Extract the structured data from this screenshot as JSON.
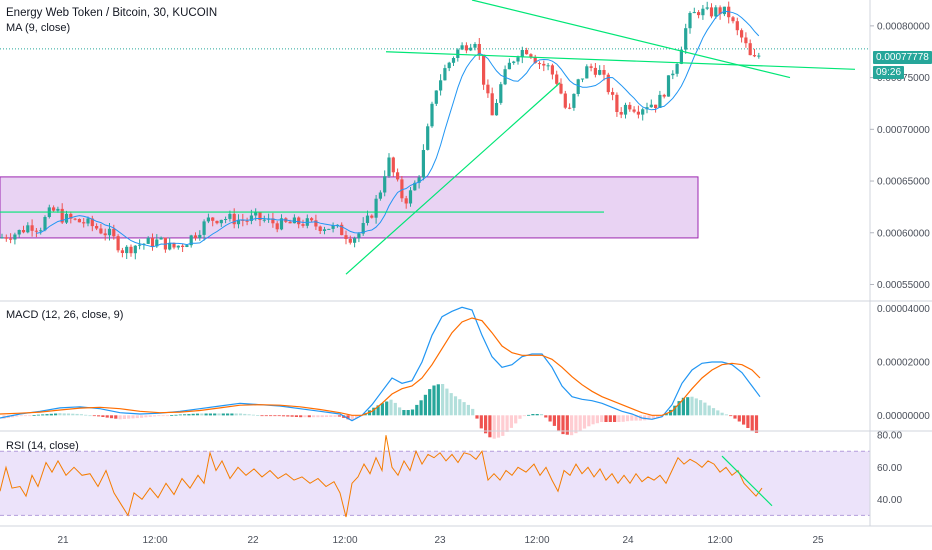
{
  "header": {
    "symbol_title": "Energy Web Token / Bitcoin, 30, KUCOIN",
    "ma_label": "MA (9, close)",
    "macd_label": "MACD (12, 26, close, 9)",
    "rsi_label": "RSI (14, close)"
  },
  "price_tags": {
    "last_price": "0.00077778",
    "countdown": "09:26"
  },
  "colors": {
    "up": "#26a69a",
    "down": "#ef5350",
    "ma": "#2196f3",
    "macd_line": "#2196f3",
    "signal_line": "#ff6d00",
    "trendline": "#00e676",
    "zone_fill": "#e1c4ef",
    "zone_border": "#9c27b0",
    "rsi_line": "#f57c00",
    "rsi_band": "#ece3fa",
    "last_price_tag": "#26a69a",
    "axis_text": "#4a4f5a"
  },
  "chart_data": [
    {
      "type": "candlestick",
      "title": "Energy Web Token / Bitcoin, 30, KUCOIN",
      "overlay": "MA (9, close)",
      "x_ticks": [
        "21",
        "12:00",
        "22",
        "12:00",
        "23",
        "12:00",
        "24",
        "12:00",
        "25"
      ],
      "y_ticks": [
        "0.00080000",
        "0.00075000",
        "0.00070000",
        "0.00065000",
        "0.00060000",
        "0.00055000"
      ],
      "ylim": [
        0.000535,
        0.000825
      ],
      "last_price": 0.00077778,
      "close_path": [
        [
          0,
          0.000595
        ],
        [
          8,
          0.000598
        ],
        [
          18,
          0.0006
        ],
        [
          30,
          0.000608
        ],
        [
          40,
          0.000605
        ],
        [
          48,
          0.000618
        ],
        [
          56,
          0.000622
        ],
        [
          62,
          0.000615
        ],
        [
          72,
          0.000612
        ],
        [
          84,
          0.00061
        ],
        [
          96,
          0.000605
        ],
        [
          110,
          0.000598
        ],
        [
          124,
          0.000582
        ],
        [
          134,
          0.000588
        ],
        [
          146,
          0.00059
        ],
        [
          160,
          0.000592
        ],
        [
          172,
          0.000585
        ],
        [
          184,
          0.00059
        ],
        [
          196,
          0.0006
        ],
        [
          208,
          0.000612
        ],
        [
          220,
          0.000615
        ],
        [
          232,
          0.000613
        ],
        [
          244,
          0.000612
        ],
        [
          256,
          0.000614
        ],
        [
          268,
          0.000611
        ],
        [
          280,
          0.000608
        ],
        [
          292,
          0.000609
        ],
        [
          304,
          0.00061
        ],
        [
          316,
          0.000607
        ],
        [
          328,
          0.000606
        ],
        [
          340,
          0.000602
        ],
        [
          352,
          0.000595
        ],
        [
          360,
          0.0006
        ],
        [
          370,
          0.000615
        ],
        [
          380,
          0.00064
        ],
        [
          388,
          0.000672
        ],
        [
          396,
          0.00065
        ],
        [
          404,
          0.00063
        ],
        [
          412,
          0.00064
        ],
        [
          420,
          0.00066
        ],
        [
          428,
          0.0007
        ],
        [
          436,
          0.00074
        ],
        [
          446,
          0.00076
        ],
        [
          456,
          0.000775
        ],
        [
          466,
          0.000782
        ],
        [
          476,
          0.000788
        ],
        [
          484,
          0.000745
        ],
        [
          492,
          0.000712
        ],
        [
          500,
          0.00074
        ],
        [
          508,
          0.00076
        ],
        [
          518,
          0.000775
        ],
        [
          528,
          0.000778
        ],
        [
          538,
          0.000765
        ],
        [
          548,
          0.00076
        ],
        [
          558,
          0.000745
        ],
        [
          568,
          0.000712
        ],
        [
          578,
          0.000745
        ],
        [
          588,
          0.00076
        ],
        [
          598,
          0.000758
        ],
        [
          608,
          0.00074
        ],
        [
          618,
          0.000715
        ],
        [
          628,
          0.000725
        ],
        [
          638,
          0.00072
        ],
        [
          648,
          0.000725
        ],
        [
          658,
          0.000725
        ],
        [
          668,
          0.000745
        ],
        [
          678,
          0.00077
        ],
        [
          688,
          0.000805
        ],
        [
          698,
          0.000815
        ],
        [
          708,
          0.000812
        ],
        [
          718,
          0.000815
        ],
        [
          728,
          0.000812
        ],
        [
          736,
          0.000795
        ],
        [
          744,
          0.000785
        ],
        [
          752,
          0.000765
        ],
        [
          758,
          0.00077
        ],
        [
          762,
          0.000778
        ]
      ],
      "trendlines": [
        {
          "from": [
            346,
            0.00056
          ],
          "to": [
            560,
            0.000745
          ]
        },
        {
          "from": [
            472,
            0.000825
          ],
          "to": [
            790,
            0.00075
          ]
        },
        {
          "from": [
            386,
            0.000775
          ],
          "to": [
            855,
            0.000758
          ]
        },
        {
          "from": [
            0,
            0.00062
          ],
          "to": [
            604,
            0.00062
          ]
        }
      ],
      "zone": {
        "x_range": [
          0,
          698
        ],
        "y_range": [
          0.000595,
          0.000654
        ]
      }
    },
    {
      "type": "macd",
      "title": "MACD (12, 26, close, 9)",
      "y_ticks": [
        "0.00004000",
        "0.00002000",
        "0.00000000"
      ],
      "ylim": [
        -5.5e-06,
        4.25e-05
      ],
      "macd_line": [
        [
          0,
          -1e-06
        ],
        [
          20,
          5e-07
        ],
        [
          40,
          1.5e-06
        ],
        [
          60,
          2.8e-06
        ],
        [
          80,
          3.2e-06
        ],
        [
          100,
          2.5e-06
        ],
        [
          120,
          1e-06
        ],
        [
          140,
          5e-07
        ],
        [
          160,
          8e-07
        ],
        [
          180,
          1.5e-06
        ],
        [
          200,
          2.5e-06
        ],
        [
          220,
          3.5e-06
        ],
        [
          240,
          4.5e-06
        ],
        [
          260,
          4e-06
        ],
        [
          280,
          3.5e-06
        ],
        [
          300,
          2.5e-06
        ],
        [
          320,
          1.5e-06
        ],
        [
          340,
          5e-07
        ],
        [
          352,
          -2e-06
        ],
        [
          362,
          0.0
        ],
        [
          372,
          4e-06
        ],
        [
          382,
          9e-06
        ],
        [
          392,
          1.4e-05
        ],
        [
          402,
          1.2e-05
        ],
        [
          412,
          1.3e-05
        ],
        [
          422,
          2e-05
        ],
        [
          432,
          3e-05
        ],
        [
          442,
          3.7e-05
        ],
        [
          452,
          3.9e-05
        ],
        [
          462,
          4.05e-05
        ],
        [
          472,
          3.95e-05
        ],
        [
          482,
          3e-05
        ],
        [
          492,
          2.2e-05
        ],
        [
          502,
          1.8e-05
        ],
        [
          512,
          1.9e-05
        ],
        [
          522,
          2.2e-05
        ],
        [
          532,
          2.3e-05
        ],
        [
          542,
          2.3e-05
        ],
        [
          552,
          1.8e-05
        ],
        [
          562,
          1.1e-05
        ],
        [
          572,
          7e-06
        ],
        [
          582,
          6e-06
        ],
        [
          592,
          5.5e-06
        ],
        [
          602,
          4.5e-06
        ],
        [
          612,
          3e-06
        ],
        [
          622,
          1.5e-06
        ],
        [
          632,
          5e-07
        ],
        [
          642,
          -1e-06
        ],
        [
          652,
          -1.5e-06
        ],
        [
          662,
          -5e-07
        ],
        [
          672,
          4e-06
        ],
        [
          682,
          1.2e-05
        ],
        [
          692,
          1.7e-05
        ],
        [
          702,
          1.95e-05
        ],
        [
          712,
          2e-05
        ],
        [
          722,
          2e-05
        ],
        [
          732,
          1.9e-05
        ],
        [
          742,
          1.6e-05
        ],
        [
          752,
          1.1e-05
        ],
        [
          760,
          7e-06
        ]
      ],
      "signal_line": [
        [
          0,
          5e-07
        ],
        [
          20,
          8e-07
        ],
        [
          40,
          1.2e-06
        ],
        [
          60,
          2e-06
        ],
        [
          80,
          2.7e-06
        ],
        [
          100,
          3e-06
        ],
        [
          120,
          2.5e-06
        ],
        [
          140,
          1.5e-06
        ],
        [
          160,
          1e-06
        ],
        [
          180,
          1.2e-06
        ],
        [
          200,
          1.8e-06
        ],
        [
          220,
          2.8e-06
        ],
        [
          240,
          3.8e-06
        ],
        [
          260,
          4e-06
        ],
        [
          280,
          3.8e-06
        ],
        [
          300,
          3.2e-06
        ],
        [
          320,
          2.2e-06
        ],
        [
          340,
          1e-06
        ],
        [
          352,
          0.0
        ],
        [
          362,
          0.0
        ],
        [
          372,
          1.5e-06
        ],
        [
          382,
          4.5e-06
        ],
        [
          392,
          8e-06
        ],
        [
          402,
          1e-05
        ],
        [
          412,
          1.1e-05
        ],
        [
          422,
          1.4e-05
        ],
        [
          432,
          1.9e-05
        ],
        [
          442,
          2.5e-05
        ],
        [
          452,
          3.1e-05
        ],
        [
          462,
          3.5e-05
        ],
        [
          472,
          3.65e-05
        ],
        [
          482,
          3.55e-05
        ],
        [
          492,
          3.1e-05
        ],
        [
          502,
          2.6e-05
        ],
        [
          512,
          2.35e-05
        ],
        [
          522,
          2.25e-05
        ],
        [
          532,
          2.25e-05
        ],
        [
          542,
          2.25e-05
        ],
        [
          552,
          2.1e-05
        ],
        [
          562,
          1.8e-05
        ],
        [
          572,
          1.45e-05
        ],
        [
          582,
          1.15e-05
        ],
        [
          592,
          9e-06
        ],
        [
          602,
          7e-06
        ],
        [
          612,
          5.5e-06
        ],
        [
          622,
          4e-06
        ],
        [
          632,
          2.5e-06
        ],
        [
          642,
          1e-06
        ],
        [
          652,
          0.0
        ],
        [
          662,
          0.0
        ],
        [
          672,
          1.5e-06
        ],
        [
          682,
          5.5e-06
        ],
        [
          692,
          1e-05
        ],
        [
          702,
          1.4e-05
        ],
        [
          712,
          1.7e-05
        ],
        [
          722,
          1.9e-05
        ],
        [
          732,
          1.95e-05
        ],
        [
          742,
          1.9e-05
        ],
        [
          752,
          1.7e-05
        ],
        [
          760,
          1.4e-05
        ]
      ]
    },
    {
      "type": "rsi",
      "title": "RSI (14, close)",
      "y_ticks": [
        "80.00",
        "60.00",
        "40.00"
      ],
      "ylim": [
        24,
        82
      ],
      "bands": [
        30,
        70
      ],
      "rsi_line": [
        [
          0,
          45
        ],
        [
          6,
          60
        ],
        [
          12,
          47
        ],
        [
          20,
          48
        ],
        [
          26,
          42
        ],
        [
          32,
          55
        ],
        [
          38,
          48
        ],
        [
          46,
          63
        ],
        [
          52,
          57
        ],
        [
          58,
          64
        ],
        [
          66,
          55
        ],
        [
          74,
          60
        ],
        [
          82,
          55
        ],
        [
          90,
          56
        ],
        [
          98,
          48
        ],
        [
          106,
          58
        ],
        [
          114,
          44
        ],
        [
          122,
          36
        ],
        [
          128,
          30
        ],
        [
          134,
          44
        ],
        [
          142,
          40
        ],
        [
          150,
          47
        ],
        [
          158,
          41
        ],
        [
          166,
          50
        ],
        [
          174,
          43
        ],
        [
          182,
          53
        ],
        [
          190,
          47
        ],
        [
          198,
          55
        ],
        [
          204,
          50
        ],
        [
          210,
          69
        ],
        [
          216,
          58
        ],
        [
          222,
          64
        ],
        [
          230,
          53
        ],
        [
          238,
          60
        ],
        [
          246,
          55
        ],
        [
          254,
          59
        ],
        [
          262,
          54
        ],
        [
          270,
          58
        ],
        [
          278,
          53
        ],
        [
          286,
          56
        ],
        [
          294,
          52
        ],
        [
          302,
          54
        ],
        [
          310,
          50
        ],
        [
          318,
          53
        ],
        [
          326,
          48
        ],
        [
          334,
          51
        ],
        [
          340,
          44
        ],
        [
          346,
          29
        ],
        [
          352,
          50
        ],
        [
          358,
          54
        ],
        [
          364,
          62
        ],
        [
          370,
          56
        ],
        [
          376,
          66
        ],
        [
          382,
          58
        ],
        [
          386,
          80
        ],
        [
          392,
          60
        ],
        [
          398,
          55
        ],
        [
          404,
          64
        ],
        [
          410,
          58
        ],
        [
          416,
          70
        ],
        [
          422,
          62
        ],
        [
          428,
          68
        ],
        [
          434,
          66
        ],
        [
          440,
          69
        ],
        [
          446,
          64
        ],
        [
          452,
          68
        ],
        [
          458,
          63
        ],
        [
          464,
          69
        ],
        [
          470,
          68
        ],
        [
          476,
          65
        ],
        [
          482,
          70
        ],
        [
          488,
          52
        ],
        [
          494,
          56
        ],
        [
          500,
          52
        ],
        [
          506,
          58
        ],
        [
          512,
          55
        ],
        [
          518,
          60
        ],
        [
          526,
          57
        ],
        [
          534,
          62
        ],
        [
          540,
          55
        ],
        [
          546,
          60
        ],
        [
          552,
          52
        ],
        [
          558,
          45
        ],
        [
          564,
          58
        ],
        [
          570,
          55
        ],
        [
          576,
          62
        ],
        [
          582,
          56
        ],
        [
          588,
          60
        ],
        [
          594,
          54
        ],
        [
          600,
          59
        ],
        [
          606,
          52
        ],
        [
          612,
          56
        ],
        [
          618,
          50
        ],
        [
          624,
          55
        ],
        [
          630,
          50
        ],
        [
          636,
          56
        ],
        [
          642,
          51
        ],
        [
          648,
          54
        ],
        [
          654,
          52
        ],
        [
          660,
          55
        ],
        [
          666,
          50
        ],
        [
          672,
          58
        ],
        [
          678,
          66
        ],
        [
          684,
          62
        ],
        [
          690,
          65
        ],
        [
          696,
          63
        ],
        [
          702,
          60
        ],
        [
          708,
          64
        ],
        [
          714,
          62
        ],
        [
          720,
          57
        ],
        [
          726,
          60
        ],
        [
          732,
          55
        ],
        [
          738,
          58
        ],
        [
          744,
          50
        ],
        [
          750,
          46
        ],
        [
          756,
          42
        ],
        [
          762,
          47
        ]
      ],
      "trendline": {
        "from": [
          722,
          67
        ],
        "to": [
          772,
          36
        ]
      }
    }
  ]
}
